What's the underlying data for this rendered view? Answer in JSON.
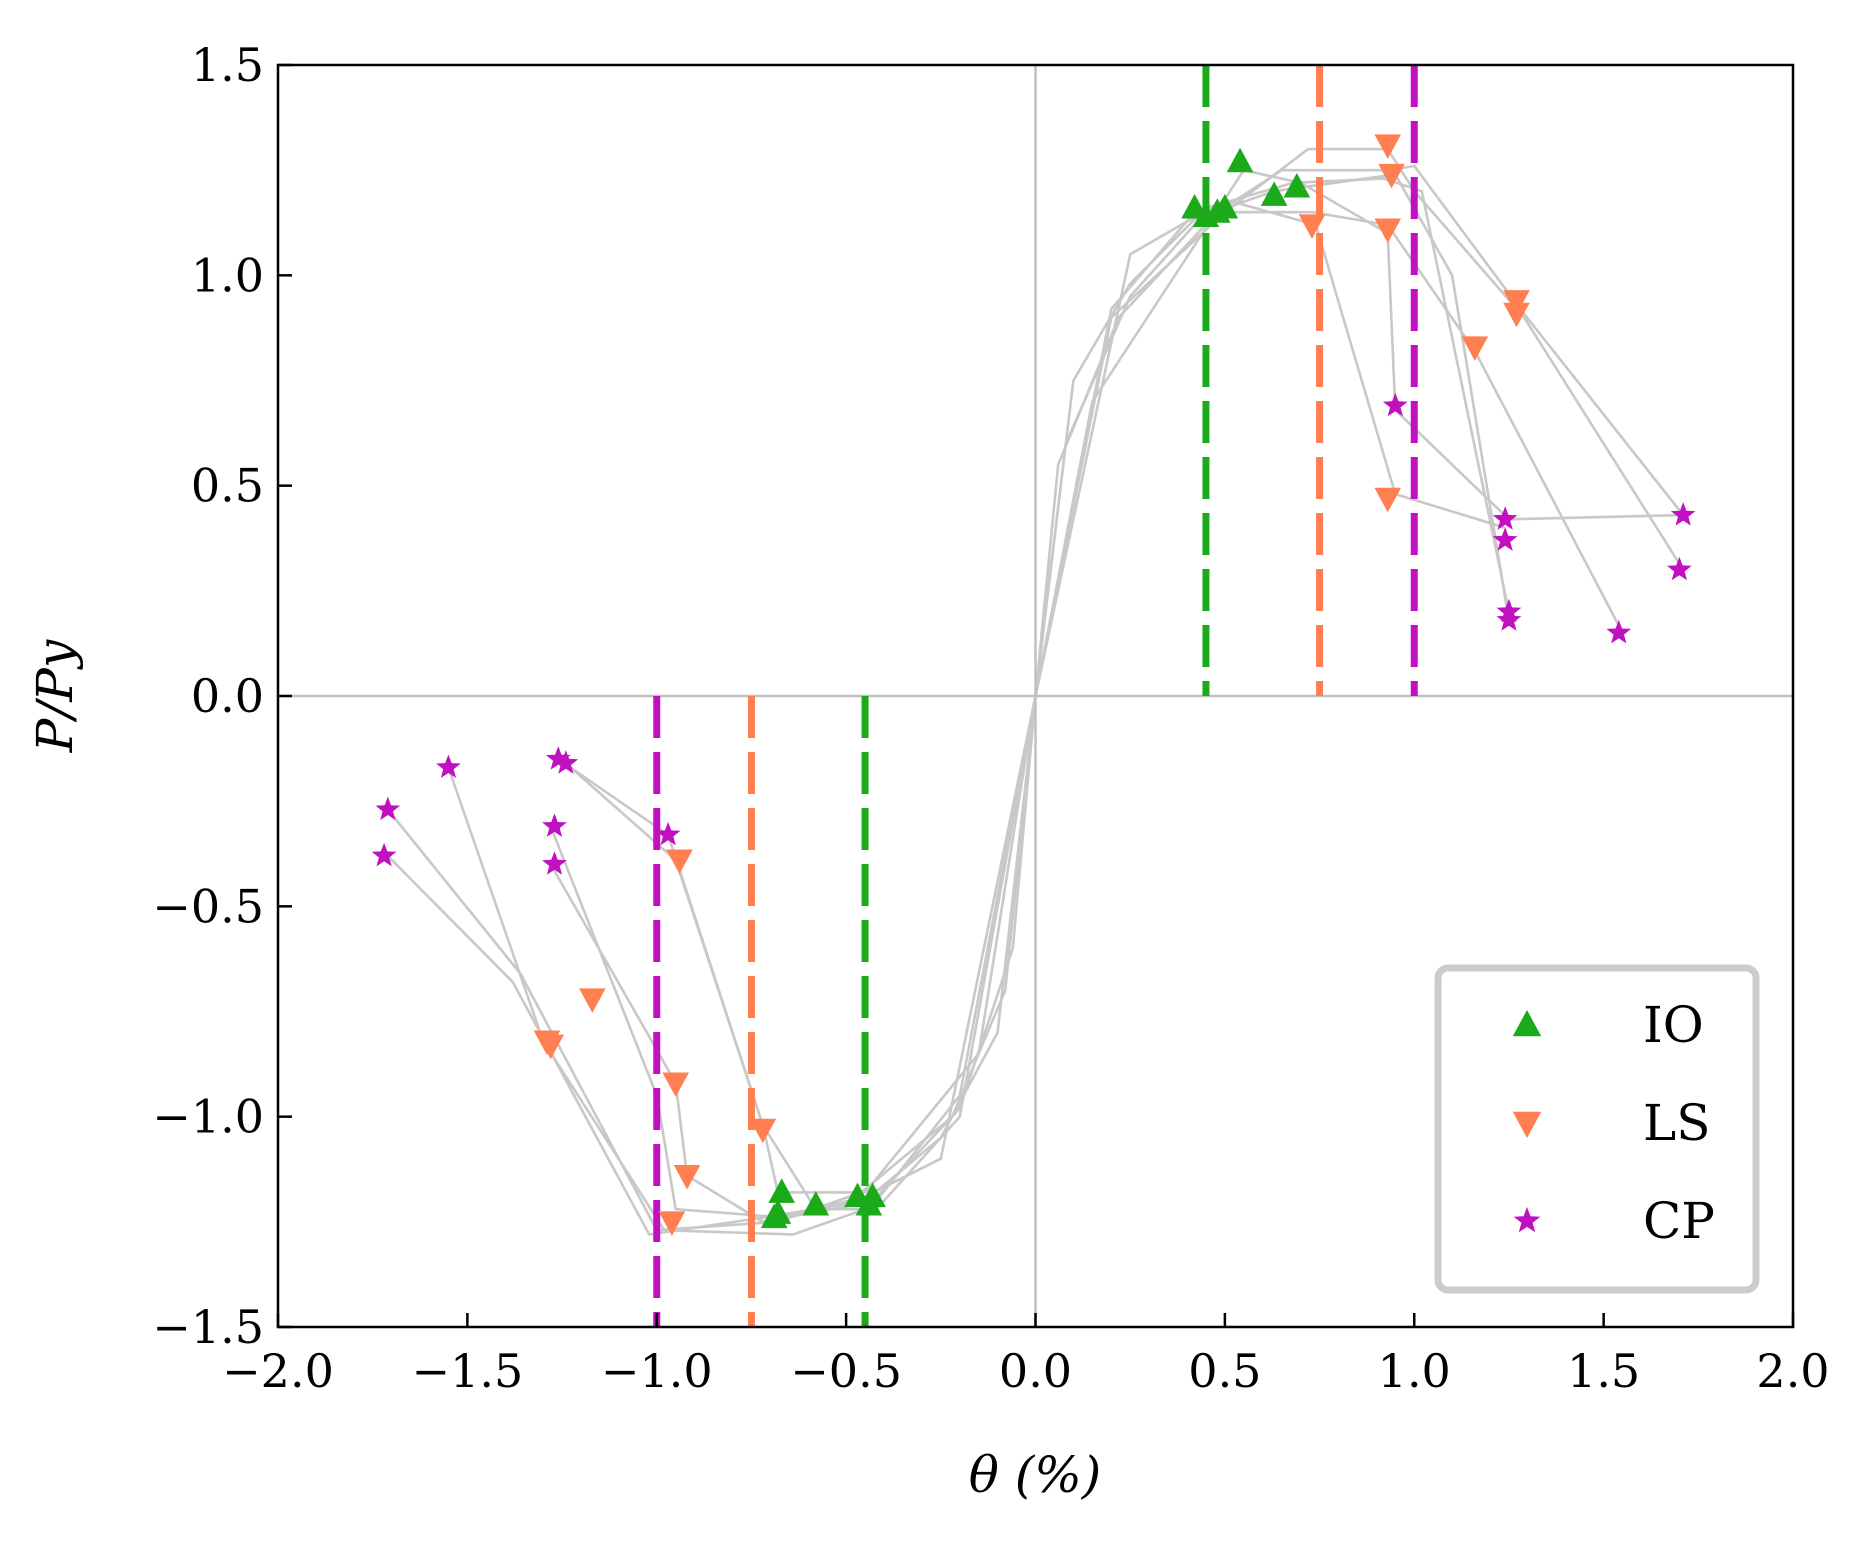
{
  "chart_data": {
    "type": "scatter",
    "xlabel": "θ (%)",
    "ylabel": "P/Py",
    "xlim": [
      -2.0,
      2.0
    ],
    "ylim": [
      -1.5,
      1.5
    ],
    "x_ticks": [
      -2.0,
      -1.5,
      -1.0,
      -0.5,
      0.0,
      0.5,
      1.0,
      1.5,
      2.0
    ],
    "y_ticks": [
      -1.5,
      -1.0,
      -0.5,
      0.0,
      0.5,
      1.0,
      1.5
    ],
    "x_tick_labels": [
      "−2.0",
      "−1.5",
      "−1.0",
      "−0.5",
      "0.0",
      "0.5",
      "1.0",
      "1.5",
      "2.0"
    ],
    "y_tick_labels": [
      "−1.5",
      "−1.0",
      "−0.5",
      "0.0",
      "0.5",
      "1.0",
      "1.5"
    ],
    "legend_position": "lower-right",
    "colors": {
      "IO": "#1aaa1a",
      "LS": "#ff7f50",
      "CP": "#c010c0",
      "curves": "#c8c8c8",
      "zero_lines": "#c0c0c0"
    },
    "threshold_lines": [
      {
        "series": "IO",
        "x": 0.45
      },
      {
        "series": "IO",
        "x": -0.45
      },
      {
        "series": "LS",
        "x": 0.75
      },
      {
        "series": "LS",
        "x": -0.75
      },
      {
        "series": "CP",
        "x": 1.0
      },
      {
        "series": "CP",
        "x": -1.0
      }
    ],
    "curves": [
      [
        [
          -1.71,
          -0.38
        ],
        [
          -1.38,
          -0.68
        ],
        [
          -1.02,
          -1.28
        ],
        [
          -0.72,
          -1.24
        ],
        [
          -0.45,
          -1.2
        ],
        [
          -0.25,
          -1.05
        ],
        [
          -0.1,
          -0.8
        ],
        [
          0,
          0
        ],
        [
          0.1,
          0.75
        ],
        [
          0.25,
          0.98
        ],
        [
          0.45,
          1.16
        ],
        [
          0.68,
          1.22
        ],
        [
          0.92,
          1.23
        ],
        [
          1.02,
          1.2
        ],
        [
          1.25,
          0.2
        ]
      ],
      [
        [
          -1.71,
          -0.27
        ],
        [
          -1.36,
          -0.66
        ],
        [
          -1.0,
          -1.27
        ],
        [
          -0.68,
          -1.25
        ],
        [
          -0.46,
          -1.18
        ],
        [
          -0.22,
          -1.0
        ],
        [
          -0.08,
          -0.7
        ],
        [
          0,
          0
        ],
        [
          0.08,
          0.6
        ],
        [
          0.25,
          0.95
        ],
        [
          0.44,
          1.14
        ],
        [
          0.63,
          1.2
        ],
        [
          0.95,
          1.24
        ],
        [
          1.1,
          1.0
        ],
        [
          1.25,
          0.18
        ]
      ],
      [
        [
          -1.55,
          -0.17
        ],
        [
          -1.3,
          -0.82
        ],
        [
          -0.98,
          -1.27
        ],
        [
          -0.64,
          -1.28
        ],
        [
          -0.45,
          -1.22
        ],
        [
          -0.2,
          -0.98
        ],
        [
          -0.06,
          -0.6
        ],
        [
          0,
          0
        ],
        [
          0.06,
          0.55
        ],
        [
          0.22,
          0.9
        ],
        [
          0.48,
          1.15
        ],
        [
          0.65,
          1.25
        ],
        [
          0.93,
          1.25
        ],
        [
          1.0,
          1.26
        ],
        [
          1.28,
          0.92
        ],
        [
          1.71,
          0.43
        ]
      ],
      [
        [
          -1.28,
          -0.31
        ],
        [
          -1.0,
          -0.95
        ],
        [
          -0.95,
          -1.22
        ],
        [
          -0.66,
          -1.24
        ],
        [
          -0.42,
          -1.2
        ],
        [
          -0.2,
          -0.95
        ],
        [
          0,
          0
        ],
        [
          0.2,
          0.9
        ],
        [
          0.5,
          1.15
        ],
        [
          0.72,
          1.3
        ],
        [
          0.93,
          1.3
        ],
        [
          1.0,
          1.2
        ],
        [
          1.29,
          0.9
        ],
        [
          1.71,
          0.3
        ]
      ],
      [
        [
          -1.28,
          -0.4
        ],
        [
          -0.95,
          -0.92
        ],
        [
          -0.92,
          -1.14
        ],
        [
          -0.72,
          -1.25
        ],
        [
          -0.45,
          -1.19
        ],
        [
          -0.25,
          -1.1
        ],
        [
          0,
          0
        ],
        [
          0.25,
          1.05
        ],
        [
          0.5,
          1.18
        ],
        [
          0.74,
          1.12
        ],
        [
          0.95,
          0.48
        ],
        [
          1.24,
          0.4
        ]
      ],
      [
        [
          -1.26,
          -0.15
        ],
        [
          -0.97,
          -0.33
        ],
        [
          -0.72,
          -1.02
        ],
        [
          -0.58,
          -1.22
        ],
        [
          -0.42,
          -1.22
        ],
        [
          -0.2,
          -1.0
        ],
        [
          0,
          0
        ],
        [
          0.2,
          0.92
        ],
        [
          0.42,
          1.15
        ],
        [
          0.73,
          1.15
        ],
        [
          0.93,
          1.12
        ],
        [
          1.16,
          0.82
        ],
        [
          1.55,
          0.15
        ]
      ],
      [
        [
          -1.24,
          -0.16
        ],
        [
          -0.95,
          -0.39
        ],
        [
          -0.72,
          -1.02
        ],
        [
          -0.68,
          -1.18
        ],
        [
          -0.45,
          -1.18
        ],
        [
          -0.15,
          -0.85
        ],
        [
          0,
          0
        ],
        [
          0.15,
          0.7
        ],
        [
          0.55,
          1.25
        ],
        [
          0.7,
          1.22
        ],
        [
          0.93,
          1.1
        ],
        [
          0.95,
          0.68
        ],
        [
          1.25,
          0.42
        ],
        [
          1.71,
          0.43
        ]
      ]
    ],
    "series": [
      {
        "name": "IO",
        "marker": "triangle-up",
        "points": [
          [
            0.42,
            1.16
          ],
          [
            0.45,
            1.14
          ],
          [
            0.48,
            1.15
          ],
          [
            0.5,
            1.16
          ],
          [
            0.54,
            1.27
          ],
          [
            0.63,
            1.19
          ],
          [
            0.69,
            1.21
          ],
          [
            -0.67,
            -1.18
          ],
          [
            -0.68,
            -1.23
          ],
          [
            -0.58,
            -1.21
          ],
          [
            -0.47,
            -1.19
          ],
          [
            -0.44,
            -1.21
          ],
          [
            -0.43,
            -1.19
          ],
          [
            -0.69,
            -1.24
          ]
        ]
      },
      {
        "name": "LS",
        "marker": "triangle-down",
        "points": [
          [
            0.73,
            1.12
          ],
          [
            0.93,
            1.31
          ],
          [
            0.94,
            1.24
          ],
          [
            0.93,
            1.11
          ],
          [
            0.93,
            0.47
          ],
          [
            1.16,
            0.83
          ],
          [
            1.27,
            0.94
          ],
          [
            1.27,
            0.91
          ],
          [
            -0.72,
            -1.03
          ],
          [
            -0.94,
            -0.39
          ],
          [
            -0.95,
            -0.92
          ],
          [
            -0.92,
            -1.14
          ],
          [
            -0.96,
            -1.25
          ],
          [
            -1.17,
            -0.72
          ],
          [
            -1.28,
            -0.83
          ],
          [
            -1.29,
            -0.82
          ]
        ]
      },
      {
        "name": "CP",
        "marker": "star",
        "points": [
          [
            0.95,
            0.69
          ],
          [
            1.24,
            0.42
          ],
          [
            1.24,
            0.37
          ],
          [
            1.25,
            0.2
          ],
          [
            1.25,
            0.18
          ],
          [
            1.54,
            0.15
          ],
          [
            1.71,
            0.43
          ],
          [
            1.7,
            0.3
          ],
          [
            -0.97,
            -0.33
          ],
          [
            -1.24,
            -0.16
          ],
          [
            -1.26,
            -0.15
          ],
          [
            -1.27,
            -0.31
          ],
          [
            -1.27,
            -0.4
          ],
          [
            -1.55,
            -0.17
          ],
          [
            -1.71,
            -0.27
          ],
          [
            -1.72,
            -0.38
          ]
        ]
      }
    ]
  }
}
